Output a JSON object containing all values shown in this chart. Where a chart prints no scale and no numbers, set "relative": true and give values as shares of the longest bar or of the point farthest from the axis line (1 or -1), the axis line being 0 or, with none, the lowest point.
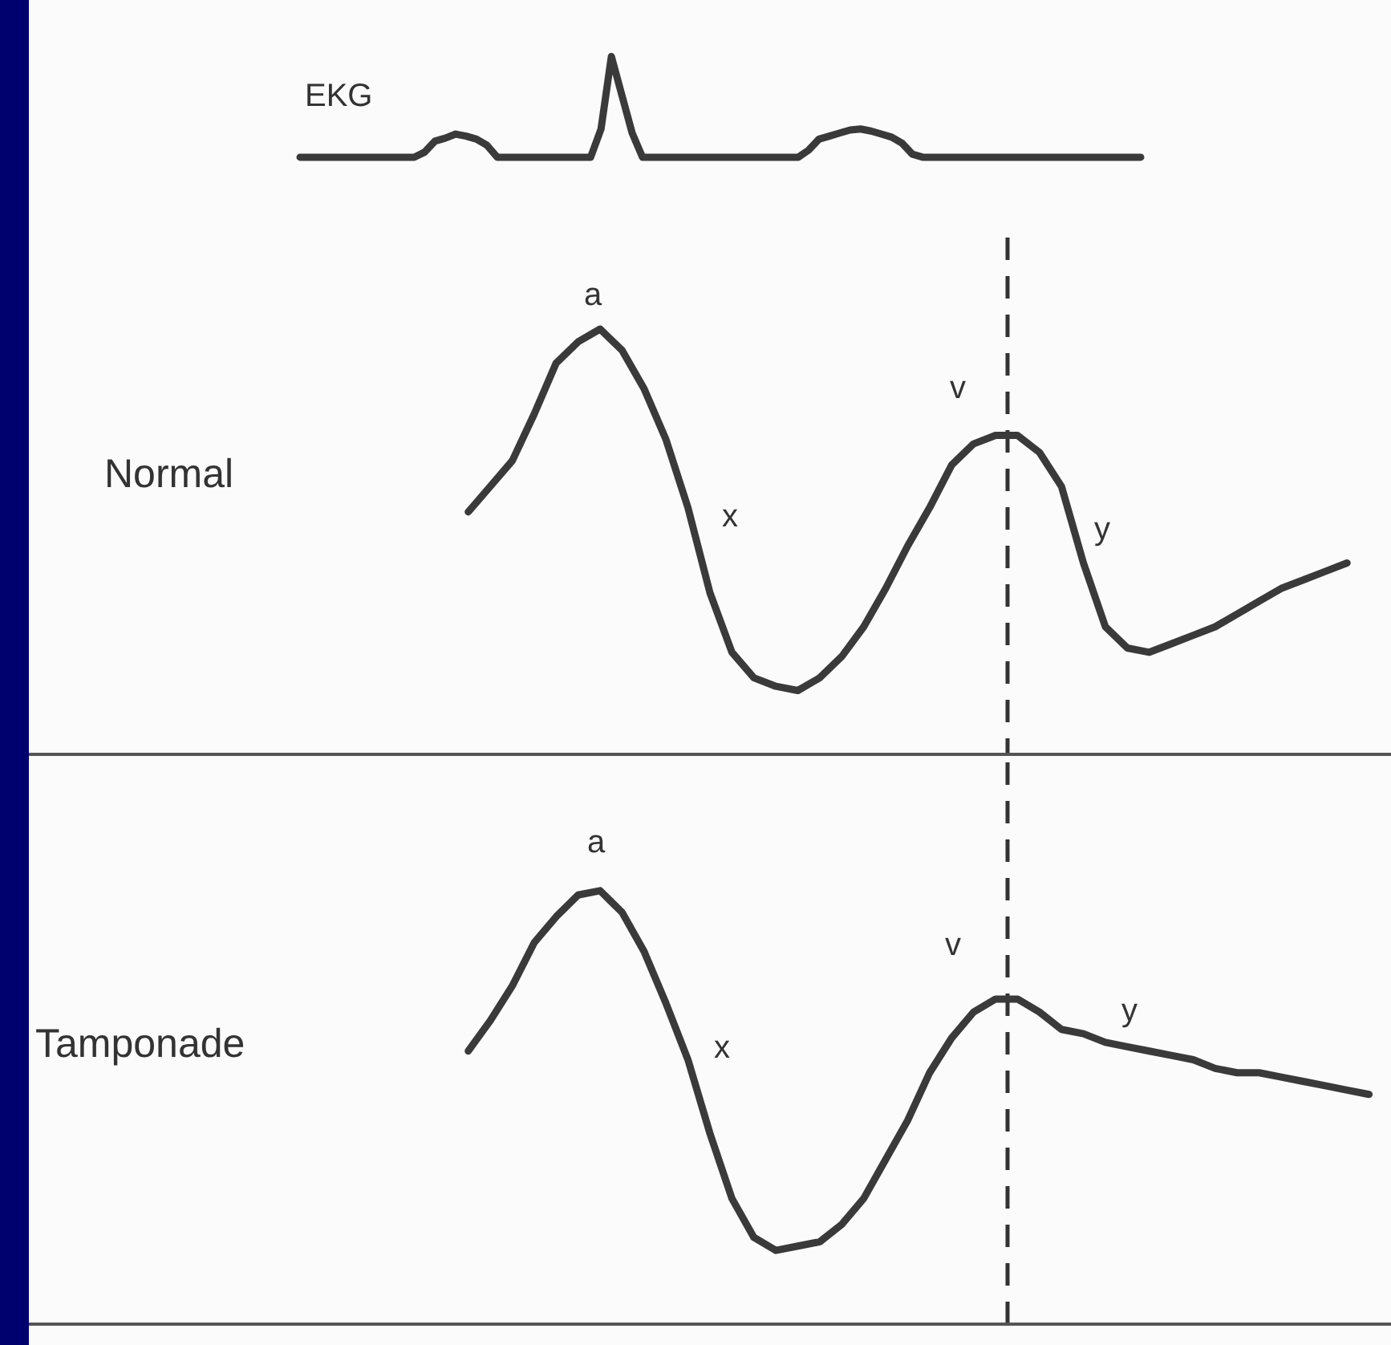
{
  "chart_data": [
    {
      "type": "line",
      "relative": true,
      "tick_labels": false,
      "marker": "none",
      "line_style": "solid",
      "categories": [
        null,
        null,
        null,
        null,
        null,
        null,
        null,
        null,
        null,
        null,
        null,
        null,
        null,
        null,
        null,
        null,
        null,
        null,
        null,
        null,
        null,
        null,
        null,
        null,
        null,
        null,
        null,
        null,
        null,
        null,
        null,
        null,
        null,
        null,
        null,
        null,
        null,
        null,
        null,
        null,
        null,
        null,
        null,
        null,
        null,
        null,
        null,
        null,
        null,
        null,
        null,
        null,
        null,
        null,
        null,
        null,
        null,
        null,
        null,
        null,
        null,
        null,
        null,
        null,
        null,
        null,
        null,
        null,
        null,
        null,
        null,
        null,
        null,
        null,
        null,
        null,
        null,
        null,
        null,
        null,
        null,
        null
      ],
      "series": [
        {
          "name": "EKG",
          "color": "#3a3a3a",
          "values": [
            0,
            0,
            0,
            0,
            0,
            0,
            0,
            0,
            0,
            0,
            0,
            0,
            0.05,
            0.16,
            0.19,
            0.23,
            0.21,
            0.18,
            0.12,
            0,
            0,
            0,
            0,
            0,
            0,
            0,
            0,
            0,
            0,
            0.28,
            1,
            0.62,
            0.24,
            0,
            0,
            0,
            0,
            0,
            0,
            0,
            0,
            0,
            0,
            0,
            0,
            0,
            0,
            0,
            0,
            0.07,
            0.18,
            0.21,
            0.24,
            0.27,
            0.28,
            0.26,
            0.23,
            0.2,
            0.14,
            0.03,
            0,
            0,
            0,
            0,
            0,
            0,
            0,
            0,
            0,
            0,
            0,
            0,
            0,
            0,
            0,
            0,
            0,
            0,
            0,
            0,
            0,
            0
          ]
        }
      ]
    },
    {
      "type": "line",
      "relative": true,
      "tick_labels": false,
      "marker": "none",
      "line_style": "solid",
      "ylabel": "Normal",
      "categories": [
        null,
        null,
        null,
        null,
        null,
        null,
        null,
        null,
        null,
        null,
        null,
        null,
        null,
        null,
        null,
        null,
        null,
        null,
        null,
        null,
        null,
        null,
        null,
        null,
        null,
        null,
        null,
        null,
        null,
        null,
        null,
        null,
        null,
        null,
        null,
        null,
        null,
        null,
        null,
        null,
        null,
        null,
        null,
        null,
        null,
        null,
        null,
        null,
        null,
        null,
        null,
        null,
        null,
        null,
        null,
        null,
        null,
        null,
        null,
        null,
        null,
        null,
        null
      ],
      "series": [
        {
          "color": "#3a3a3a",
          "values": [
            null,
            null,
            null,
            null,
            null,
            null,
            null,
            null,
            null,
            null,
            null,
            null,
            null,
            null,
            null,
            null,
            null,
            null,
            null,
            null,
            0.57,
            0.63,
            0.69,
            0.8,
            0.92,
            0.97,
            1,
            0.95,
            0.86,
            0.74,
            0.58,
            0.38,
            0.24,
            0.18,
            0.16,
            0.15,
            0.18,
            0.23,
            0.3,
            0.39,
            0.49,
            0.58,
            0.68,
            0.73,
            0.75,
            0.75,
            0.71,
            0.63,
            0.45,
            0.3,
            0.25,
            0.24,
            0.26,
            0.28,
            0.3,
            0.33,
            0.36,
            0.39,
            0.41,
            0.43,
            0.45,
            null,
            null
          ]
        }
      ],
      "annotations": [
        "a",
        "x",
        "v",
        "y"
      ],
      "ref_lines": [
        {
          "axis": "x",
          "line_style": "dashed",
          "color": "#333333"
        }
      ]
    },
    {
      "type": "line",
      "relative": true,
      "tick_labels": false,
      "marker": "none",
      "line_style": "solid",
      "ylabel": "Tamponade",
      "categories": [
        null,
        null,
        null,
        null,
        null,
        null,
        null,
        null,
        null,
        null,
        null,
        null,
        null,
        null,
        null,
        null,
        null,
        null,
        null,
        null,
        null,
        null,
        null,
        null,
        null,
        null,
        null,
        null,
        null,
        null,
        null,
        null,
        null,
        null,
        null,
        null,
        null,
        null,
        null,
        null,
        null,
        null,
        null,
        null,
        null,
        null,
        null,
        null,
        null,
        null,
        null,
        null,
        null,
        null,
        null,
        null,
        null,
        null,
        null,
        null,
        null,
        null,
        null
      ],
      "series": [
        {
          "color": "#3a3a3a",
          "values": [
            null,
            null,
            null,
            null,
            null,
            null,
            null,
            null,
            null,
            null,
            null,
            null,
            null,
            null,
            null,
            null,
            null,
            null,
            null,
            null,
            0.63,
            0.7,
            0.78,
            0.88,
            0.94,
            0.99,
            1,
            0.95,
            0.86,
            0.74,
            0.61,
            0.44,
            0.29,
            0.2,
            0.17,
            0.18,
            0.19,
            0.23,
            0.29,
            0.38,
            0.47,
            0.58,
            0.66,
            0.72,
            0.75,
            0.75,
            0.72,
            0.68,
            0.67,
            0.65,
            0.64,
            0.63,
            0.62,
            0.61,
            0.59,
            0.58,
            0.58,
            0.57,
            0.56,
            0.55,
            0.54,
            0.53,
            null
          ]
        }
      ],
      "annotations": [
        "a",
        "x",
        "v",
        "y"
      ],
      "ref_lines": [
        {
          "axis": "x",
          "line_style": "dashed",
          "color": "#333333"
        }
      ]
    }
  ]
}
